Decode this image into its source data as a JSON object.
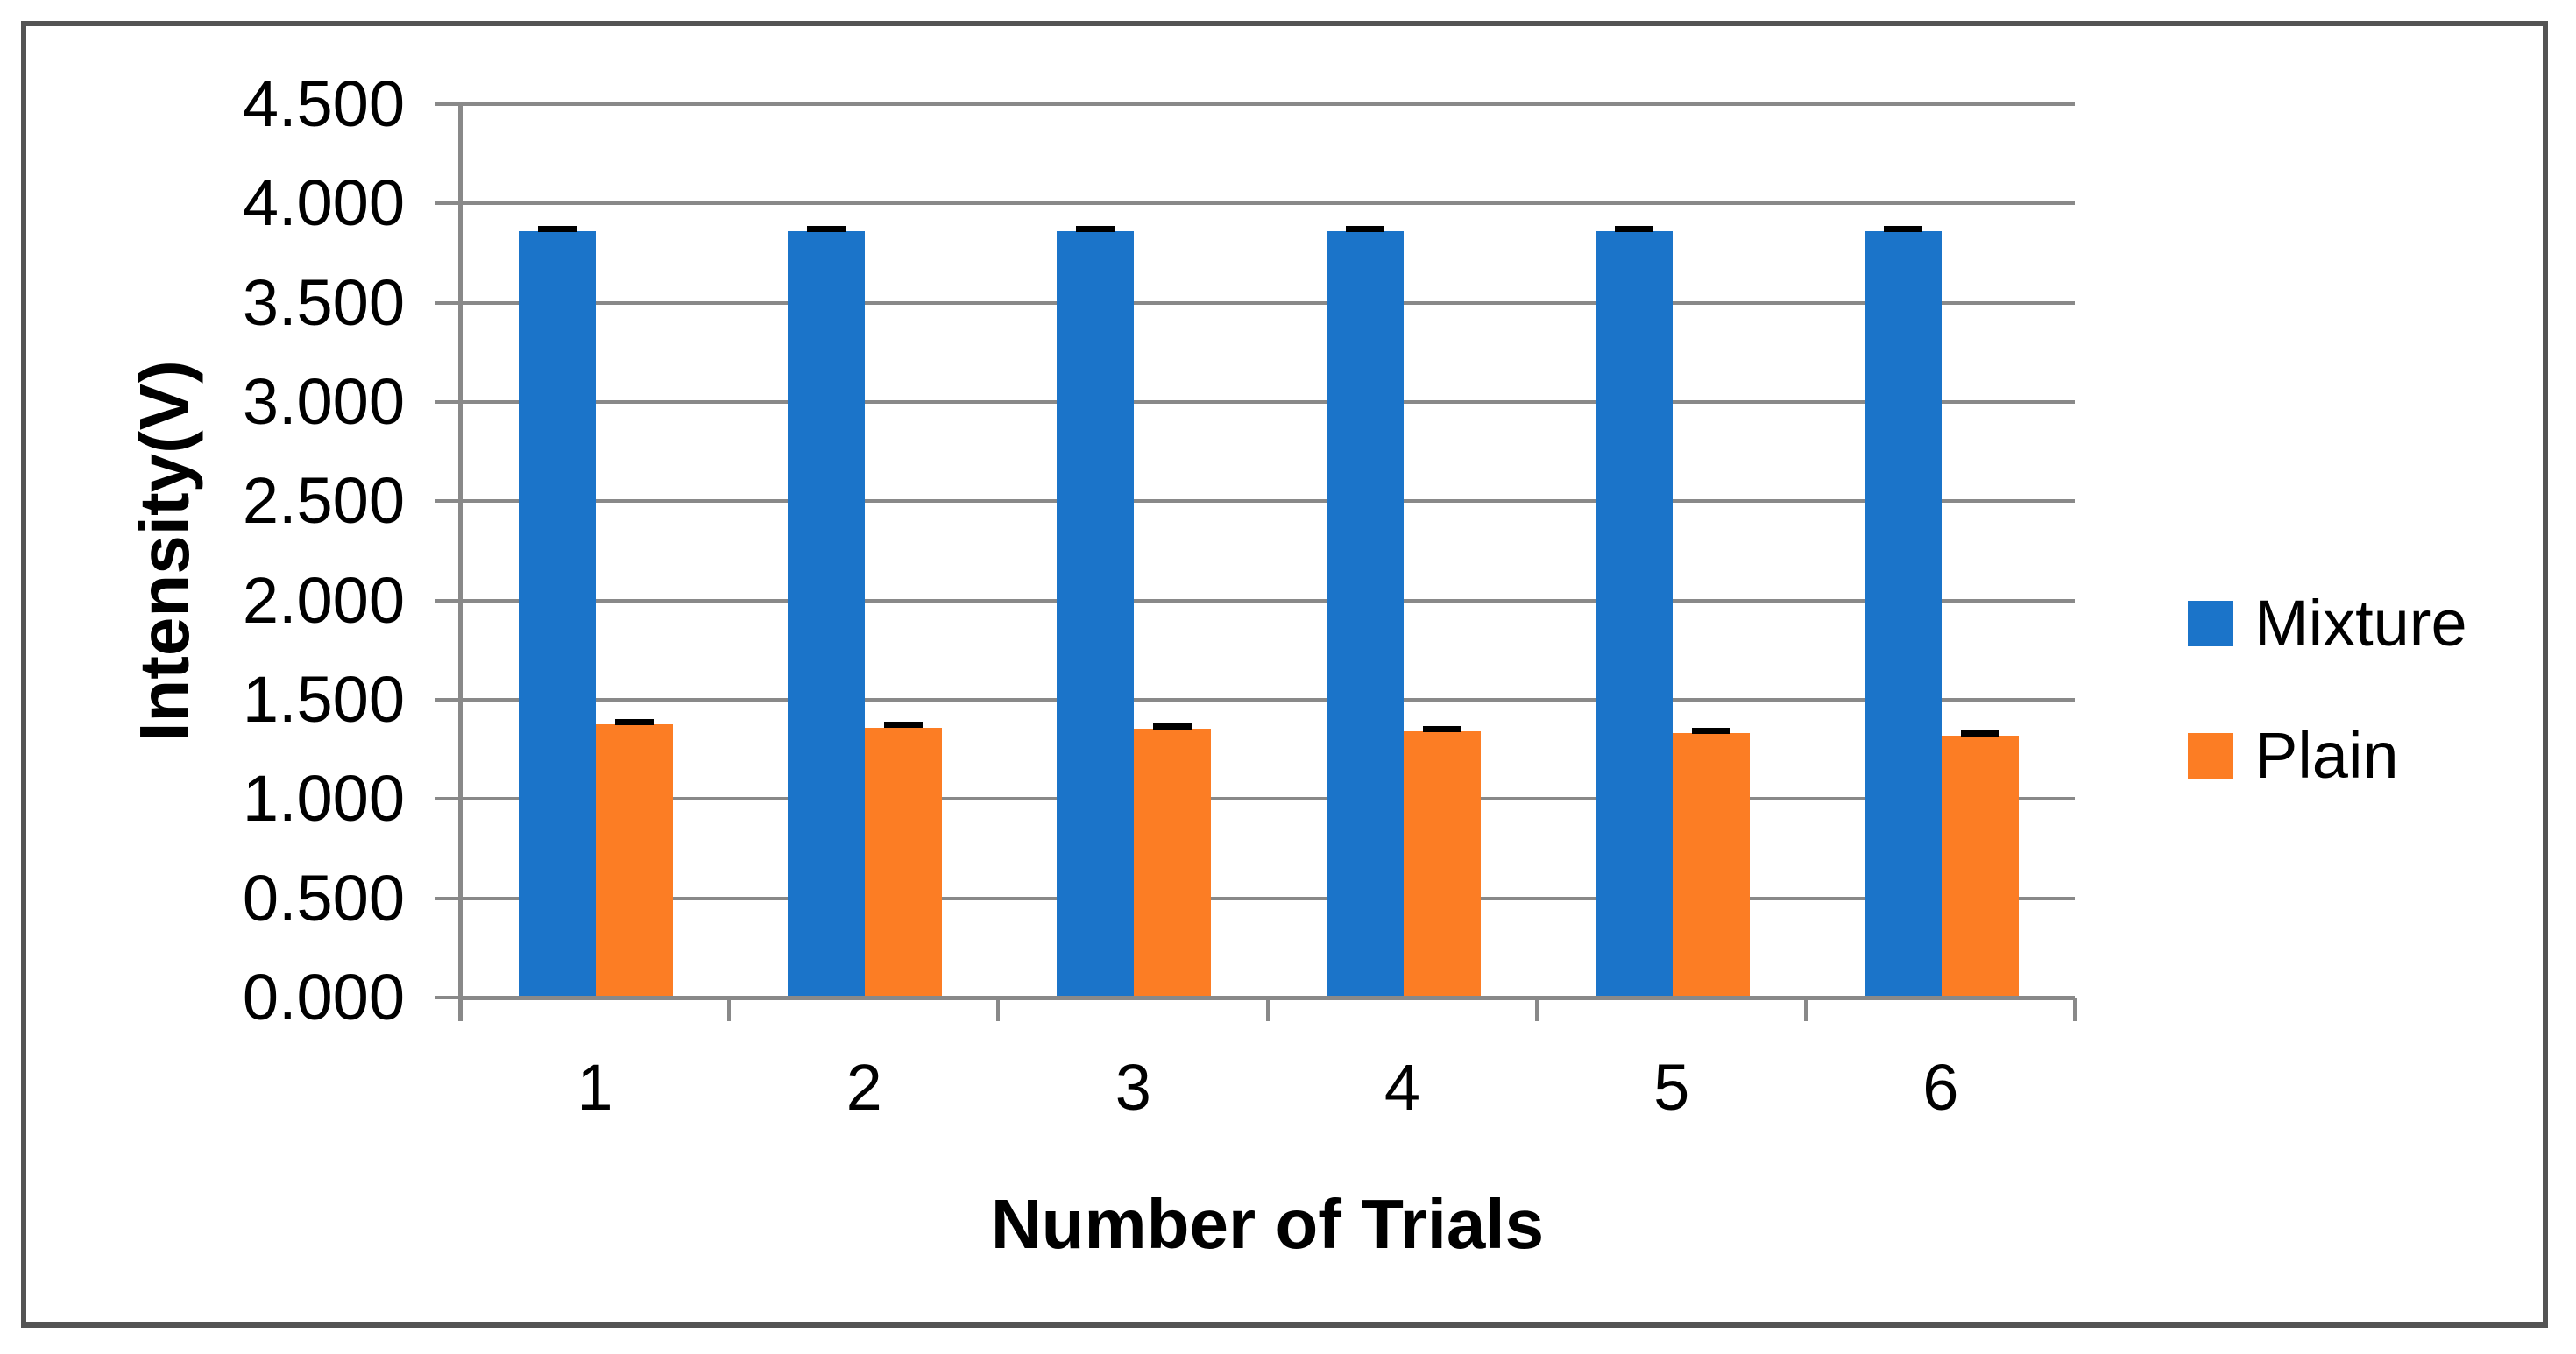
{
  "chart_data": {
    "type": "bar",
    "title": "",
    "categories": [
      "1",
      "2",
      "3",
      "4",
      "5",
      "6"
    ],
    "series": [
      {
        "name": "Mixture",
        "color": "#1B74C9",
        "values": [
          3.86,
          3.86,
          3.86,
          3.86,
          3.86,
          3.86
        ],
        "error": 0.012
      },
      {
        "name": "Plain",
        "color": "#FC7D24",
        "values": [
          1.376,
          1.361,
          1.353,
          1.341,
          1.331,
          1.318
        ],
        "error": 0.012
      }
    ],
    "xlabel": "Number of Trials",
    "ylabel": "Intensity(V)",
    "ylim": [
      0,
      4.5
    ],
    "ytick_step": 0.5,
    "ytick_labels": [
      "0.000",
      "0.500",
      "1.000",
      "1.500",
      "2.000",
      "2.500",
      "3.000",
      "3.500",
      "4.000",
      "4.500"
    ],
    "grid": "horizontal",
    "legend_position": "right",
    "error_bar_color": "#000000"
  },
  "colors": {
    "gridline": "#898989",
    "axis": "#898989",
    "frame": "#545454",
    "text": "#000000",
    "background": "#FFFFFF"
  }
}
